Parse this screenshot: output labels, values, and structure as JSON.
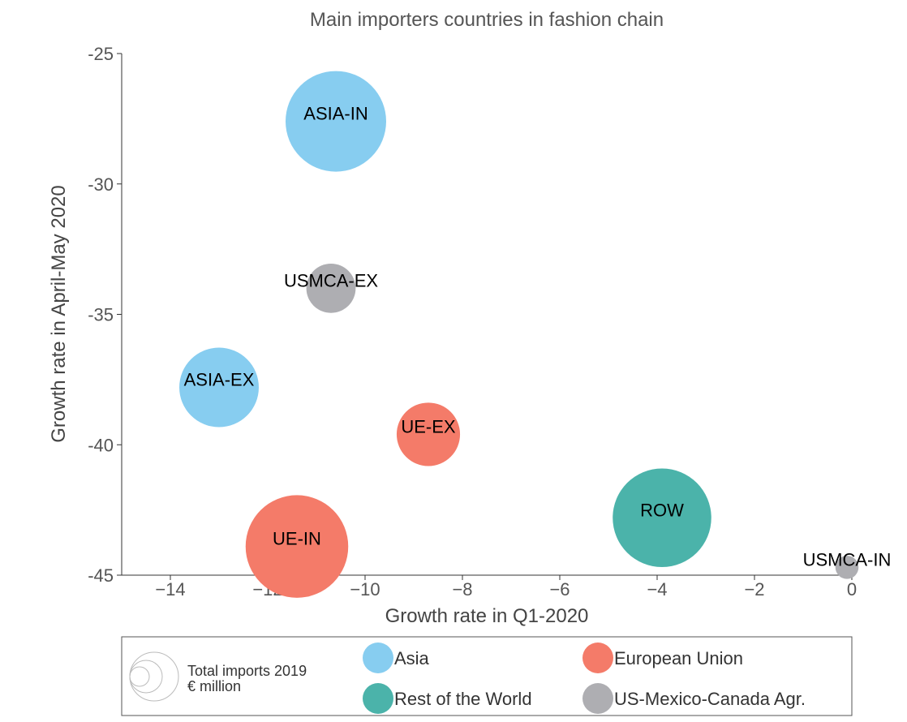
{
  "chart_data": {
    "type": "scatter",
    "title": "Main importers countries in fashion chain",
    "xlabel": "Growth rate in Q1-2020",
    "ylabel": "Growth rate in April-May 2020",
    "xlim": [
      -15,
      0
    ],
    "ylim": [
      -45,
      -25
    ],
    "x_ticks": [
      -14,
      -12,
      -10,
      -8,
      -6,
      -4,
      -2,
      0
    ],
    "y_ticks": [
      -25,
      -30,
      -35,
      -40,
      -45
    ],
    "points": [
      {
        "label": "ASIA-IN",
        "group": "Asia",
        "x": -10.6,
        "y": -27.6,
        "size": 1.0
      },
      {
        "label": "USMCA-EX",
        "group": "US-Mexico-Canada Agr.",
        "x": -10.7,
        "y": -34.0,
        "size": 0.49
      },
      {
        "label": "ASIA-EX",
        "group": "Asia",
        "x": -13.0,
        "y": -37.8,
        "size": 0.79
      },
      {
        "label": "UE-EX",
        "group": "European Union",
        "x": -8.7,
        "y": -39.6,
        "size": 0.63
      },
      {
        "label": "UE-IN",
        "group": "European Union",
        "x": -11.4,
        "y": -43.9,
        "size": 1.02
      },
      {
        "label": "ROW",
        "group": "Rest of the World",
        "x": -3.9,
        "y": -42.8,
        "size": 0.98
      },
      {
        "label": "USMCA-IN",
        "group": "US-Mexico-Canada Agr.",
        "x": -0.1,
        "y": -44.7,
        "size": 0.23
      }
    ],
    "groups": [
      {
        "name": "Asia",
        "color": "#87cdf0"
      },
      {
        "name": "European Union",
        "color": "#f47b69"
      },
      {
        "name": "Rest of the World",
        "color": "#4bb3aa"
      },
      {
        "name": "US-Mexico-Canada Agr.",
        "color": "#aeaeb2"
      }
    ],
    "grid": false,
    "legend_position": "bottom",
    "legend_size_title": [
      "Total imports 2019",
      "€ million"
    ]
  }
}
